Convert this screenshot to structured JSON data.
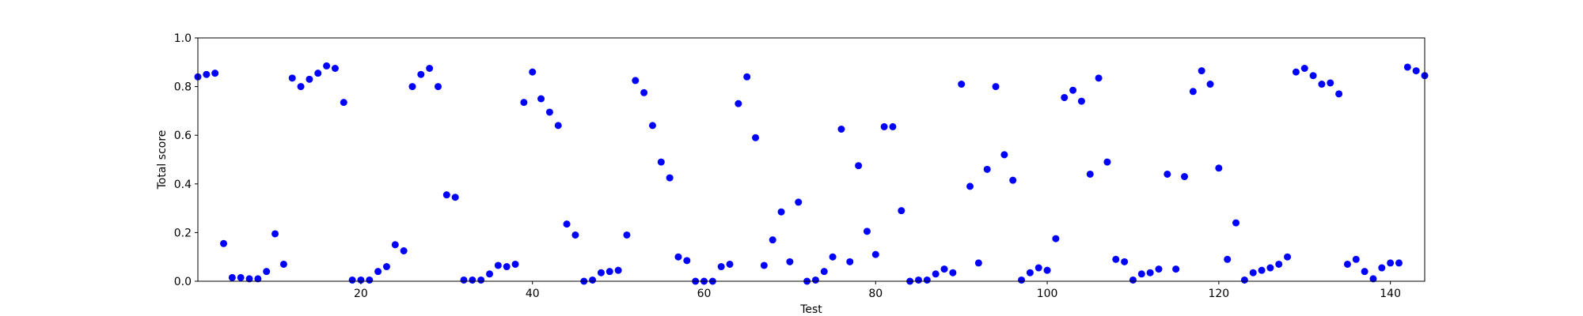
{
  "chart_data": {
    "type": "scatter",
    "title": "",
    "xlabel": "Test",
    "ylabel": "Total score",
    "xlim": [
      1,
      144
    ],
    "ylim": [
      0.0,
      1.0
    ],
    "xticks": [
      20,
      40,
      60,
      80,
      100,
      120,
      140
    ],
    "yticks": [
      0.0,
      0.2,
      0.4,
      0.6,
      0.8,
      1.0
    ],
    "xtick_labels": [
      "20",
      "40",
      "60",
      "80",
      "100",
      "120",
      "140"
    ],
    "ytick_labels": [
      "0.0",
      "0.2",
      "0.4",
      "0.6",
      "0.8",
      "1.0"
    ],
    "grid": false,
    "marker_color": "#0000ff",
    "series": [
      {
        "x": [
          1,
          2,
          3,
          4,
          5,
          6,
          7,
          8,
          9,
          10,
          11,
          12,
          13,
          14,
          15,
          16,
          17,
          18,
          19,
          20,
          21,
          22,
          23,
          24,
          25,
          26,
          27,
          28,
          29,
          30,
          31,
          32,
          33,
          34,
          35,
          36,
          37,
          38,
          39,
          40,
          41,
          42,
          43,
          44,
          45,
          46,
          47,
          48,
          49,
          50,
          51,
          52,
          53,
          54,
          55,
          56,
          57,
          58,
          59,
          60,
          61,
          62,
          63,
          64,
          65,
          66,
          67,
          68,
          69,
          70,
          71,
          72,
          73,
          74,
          75,
          76,
          77,
          78,
          79,
          80,
          81,
          82,
          83,
          84,
          85,
          86,
          87,
          88,
          89,
          90,
          91,
          92,
          93,
          94,
          95,
          96,
          97,
          98,
          99,
          100,
          101,
          102,
          103,
          104,
          105,
          106,
          107,
          108,
          109,
          110,
          111,
          112,
          113,
          114,
          115,
          116,
          117,
          118,
          119,
          120,
          121,
          122,
          123,
          124,
          125,
          126,
          127,
          128,
          129,
          130,
          131,
          132,
          133,
          134,
          135,
          136,
          137,
          138,
          139,
          140,
          141,
          142,
          143,
          144
        ],
        "y": [
          0.84,
          0.85,
          0.855,
          0.155,
          0.015,
          0.015,
          0.01,
          0.01,
          0.04,
          0.195,
          0.07,
          0.835,
          0.8,
          0.83,
          0.855,
          0.885,
          0.875,
          0.735,
          0.005,
          0.005,
          0.005,
          0.04,
          0.06,
          0.15,
          0.125,
          0.8,
          0.85,
          0.875,
          0.8,
          0.355,
          0.345,
          0.005,
          0.005,
          0.005,
          0.03,
          0.065,
          0.06,
          0.07,
          0.735,
          0.86,
          0.75,
          0.695,
          0.64,
          0.235,
          0.19,
          0.0,
          0.005,
          0.035,
          0.04,
          0.045,
          0.19,
          0.825,
          0.775,
          0.64,
          0.49,
          0.425,
          0.1,
          0.085,
          0.0,
          0.0,
          0.0,
          0.06,
          0.07,
          0.73,
          0.84,
          0.59,
          0.065,
          0.17,
          0.285,
          0.08,
          0.325,
          0.0,
          0.005,
          0.04,
          0.1,
          0.625,
          0.08,
          0.475,
          0.205,
          0.11,
          0.635,
          0.635,
          0.29,
          0.0,
          0.005,
          0.005,
          0.03,
          0.05,
          0.035,
          0.81,
          0.39,
          0.075,
          0.46,
          0.8,
          0.52,
          0.415,
          0.005,
          0.035,
          0.055,
          0.045,
          0.175,
          0.755,
          0.785,
          0.74,
          0.44,
          0.835,
          0.49,
          0.09,
          0.08,
          0.005,
          0.03,
          0.035,
          0.05,
          0.44,
          0.05,
          0.43,
          0.78,
          0.865,
          0.81,
          0.465,
          0.09,
          0.24,
          0.005,
          0.035,
          0.045,
          0.055,
          0.07,
          0.1,
          0.86,
          0.875,
          0.845,
          0.81,
          0.815,
          0.77,
          0.07,
          0.09,
          0.04,
          0.01,
          0.055,
          0.075,
          0.075,
          0.88,
          0.865,
          0.845
        ]
      }
    ]
  }
}
